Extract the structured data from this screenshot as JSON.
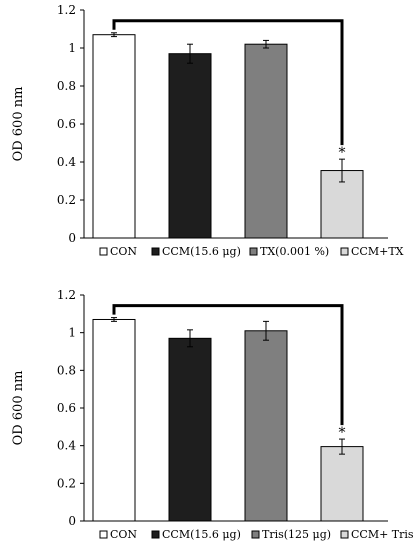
{
  "chart_data": [
    {
      "type": "bar",
      "title": "",
      "xlabel": "",
      "ylabel": "OD 600 nm",
      "ylim": [
        0,
        1.2
      ],
      "yticks": [
        0,
        0.2,
        0.4,
        0.6,
        0.8,
        1,
        1.2
      ],
      "ytick_labels": [
        "0",
        "0.2",
        "0.4",
        "0.6",
        "0.8",
        "1",
        "1.2"
      ],
      "categories": [
        "CON",
        "CCM(15.6 μg)",
        "TX(0.001 %)",
        "CCM+TX"
      ],
      "values": [
        1.07,
        0.97,
        1.02,
        0.355
      ],
      "errors": [
        0.01,
        0.05,
        0.02,
        0.06
      ],
      "colors": [
        "#ffffff",
        "#1e1e1e",
        "#7f7f7f",
        "#d9d9d9"
      ],
      "legend": [
        "CON",
        "CCM(15.6 μg)",
        "TX(0.001 %)",
        "CCM+TX"
      ],
      "legend_position": "bottom",
      "significance": {
        "from": 0,
        "to": 3,
        "marker": "*"
      },
      "grid": false
    },
    {
      "type": "bar",
      "title": "",
      "xlabel": "",
      "ylabel": "OD 600 nm",
      "ylim": [
        0,
        1.2
      ],
      "yticks": [
        0,
        0.2,
        0.4,
        0.6,
        0.8,
        1,
        1.2
      ],
      "ytick_labels": [
        "0",
        "0.2",
        "0.4",
        "0.6",
        "0.8",
        "1",
        "1.2"
      ],
      "categories": [
        "CON",
        "CCM(15.6 μg)",
        "Tris(125 μg)",
        "CCM+ Tris"
      ],
      "values": [
        1.07,
        0.97,
        1.01,
        0.395
      ],
      "errors": [
        0.01,
        0.045,
        0.05,
        0.04
      ],
      "colors": [
        "#ffffff",
        "#1e1e1e",
        "#7f7f7f",
        "#d9d9d9"
      ],
      "legend": [
        "CON",
        "CCM(15.6 μg)",
        "Tris(125 μg)",
        "CCM+ Tris"
      ],
      "legend_position": "bottom",
      "significance": {
        "from": 0,
        "to": 3,
        "marker": "*"
      },
      "grid": false
    }
  ]
}
